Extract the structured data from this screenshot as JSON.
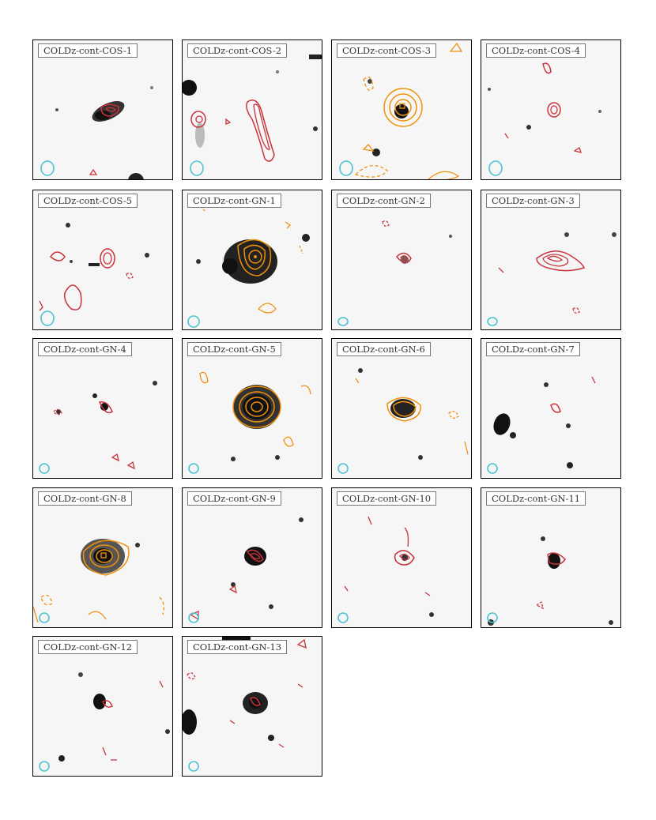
{
  "figure": {
    "panels": [
      {
        "id": "COLDz-cont-COS-1",
        "label": "COLDz-cont-COS-1",
        "style": "red"
      },
      {
        "id": "COLDz-cont-COS-2",
        "label": "COLDz-cont-COS-2",
        "style": "red"
      },
      {
        "id": "COLDz-cont-COS-3",
        "label": "COLDz-cont-COS-3",
        "style": "orange"
      },
      {
        "id": "COLDz-cont-COS-4",
        "label": "COLDz-cont-COS-4",
        "style": "red"
      },
      {
        "id": "COLDz-cont-COS-5",
        "label": "COLDz-cont-COS-5",
        "style": "red"
      },
      {
        "id": "COLDz-cont-GN-1",
        "label": "COLDz-cont-GN-1",
        "style": "orange"
      },
      {
        "id": "COLDz-cont-GN-2",
        "label": "COLDz-cont-GN-2",
        "style": "red"
      },
      {
        "id": "COLDz-cont-GN-3",
        "label": "COLDz-cont-GN-3",
        "style": "red"
      },
      {
        "id": "COLDz-cont-GN-4",
        "label": "COLDz-cont-GN-4",
        "style": "red"
      },
      {
        "id": "COLDz-cont-GN-5",
        "label": "COLDz-cont-GN-5",
        "style": "orange"
      },
      {
        "id": "COLDz-cont-GN-6",
        "label": "COLDz-cont-GN-6",
        "style": "orange"
      },
      {
        "id": "COLDz-cont-GN-7",
        "label": "COLDz-cont-GN-7",
        "style": "red"
      },
      {
        "id": "COLDz-cont-GN-8",
        "label": "COLDz-cont-GN-8",
        "style": "orange"
      },
      {
        "id": "COLDz-cont-GN-9",
        "label": "COLDz-cont-GN-9",
        "style": "red"
      },
      {
        "id": "COLDz-cont-GN-10",
        "label": "COLDz-cont-GN-10",
        "style": "red"
      },
      {
        "id": "COLDz-cont-GN-11",
        "label": "COLDz-cont-GN-11",
        "style": "red"
      },
      {
        "id": "COLDz-cont-GN-12",
        "label": "COLDz-cont-GN-12",
        "style": "red"
      },
      {
        "id": "COLDz-cont-GN-13",
        "label": "COLDz-cont-GN-13",
        "style": "red"
      }
    ],
    "colors": {
      "red_contour": "#c8323a",
      "orange_contour": "#f0900a",
      "beam": "#4cc3d4",
      "galaxy": "#111111"
    }
  }
}
